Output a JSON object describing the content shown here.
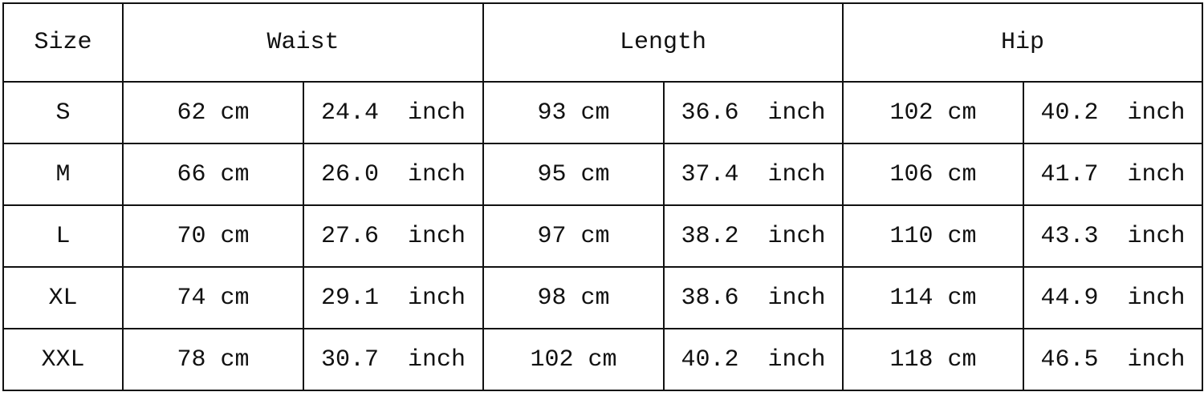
{
  "headers": [
    "Size",
    "Waist",
    "Length",
    "Hip"
  ],
  "rows": [
    {
      "size": "S",
      "waist_cm": "62 cm",
      "waist_in": "24.4  inch",
      "length_cm": "93 cm",
      "length_in": "36.6  inch",
      "hip_cm": "102 cm",
      "hip_in": "40.2  inch"
    },
    {
      "size": "M",
      "waist_cm": "66 cm",
      "waist_in": "26.0  inch",
      "length_cm": "95 cm",
      "length_in": "37.4  inch",
      "hip_cm": "106 cm",
      "hip_in": "41.7  inch"
    },
    {
      "size": "L",
      "waist_cm": "70 cm",
      "waist_in": "27.6  inch",
      "length_cm": "97 cm",
      "length_in": "38.2  inch",
      "hip_cm": "110 cm",
      "hip_in": "43.3  inch"
    },
    {
      "size": "XL",
      "waist_cm": "74 cm",
      "waist_in": "29.1  inch",
      "length_cm": "98 cm",
      "length_in": "38.6  inch",
      "hip_cm": "114 cm",
      "hip_in": "44.9  inch"
    },
    {
      "size": "XXL",
      "waist_cm": "78 cm",
      "waist_in": "30.7  inch",
      "length_cm": "102 cm",
      "length_in": "40.2  inch",
      "hip_cm": "118 cm",
      "hip_in": "46.5  inch"
    }
  ]
}
